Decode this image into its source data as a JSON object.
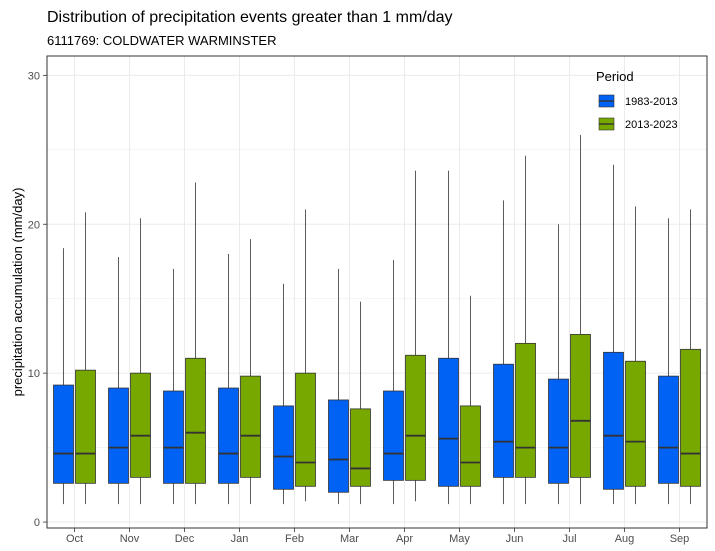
{
  "chart_data": {
    "type": "boxplot",
    "title": "Distribution of precipitation events greater than 1 mm/day",
    "subtitle": "6111769: COLDWATER WARMINSTER",
    "xlabel": "",
    "ylabel": "precipitation accumulation (mm/day)",
    "ylim": [
      0,
      30
    ],
    "yticks": [
      0,
      10,
      20,
      30
    ],
    "grid": true,
    "legend": {
      "title": "Period",
      "position": "top-right"
    },
    "categories": [
      "Oct",
      "Nov",
      "Dec",
      "Jan",
      "Feb",
      "Mar",
      "Apr",
      "May",
      "Jun",
      "Jul",
      "Aug",
      "Sep"
    ],
    "series": [
      {
        "name": "1983-2013",
        "color": "#0061F5",
        "boxes": [
          {
            "low": 1.2,
            "q1": 2.6,
            "median": 4.6,
            "q3": 9.2,
            "high": 18.4
          },
          {
            "low": 1.2,
            "q1": 2.6,
            "median": 5.0,
            "q3": 9.0,
            "high": 17.8
          },
          {
            "low": 1.2,
            "q1": 2.6,
            "median": 5.0,
            "q3": 8.8,
            "high": 17.0
          },
          {
            "low": 1.2,
            "q1": 2.6,
            "median": 4.6,
            "q3": 9.0,
            "high": 18.0
          },
          {
            "low": 1.2,
            "q1": 2.2,
            "median": 4.4,
            "q3": 7.8,
            "high": 16.0
          },
          {
            "low": 1.2,
            "q1": 2.0,
            "median": 4.2,
            "q3": 8.2,
            "high": 17.0
          },
          {
            "low": 1.2,
            "q1": 2.8,
            "median": 4.6,
            "q3": 8.8,
            "high": 17.6
          },
          {
            "low": 1.2,
            "q1": 2.4,
            "median": 5.6,
            "q3": 11.0,
            "high": 23.6
          },
          {
            "low": 1.2,
            "q1": 3.0,
            "median": 5.4,
            "q3": 10.6,
            "high": 21.6
          },
          {
            "low": 1.2,
            "q1": 2.6,
            "median": 5.0,
            "q3": 9.6,
            "high": 20.0
          },
          {
            "low": 1.2,
            "q1": 2.2,
            "median": 5.8,
            "q3": 11.4,
            "high": 24.0
          },
          {
            "low": 1.2,
            "q1": 2.6,
            "median": 5.0,
            "q3": 9.8,
            "high": 20.4
          }
        ]
      },
      {
        "name": "2013-2023",
        "color": "#77A800",
        "boxes": [
          {
            "low": 1.2,
            "q1": 2.6,
            "median": 4.6,
            "q3": 10.2,
            "high": 20.8
          },
          {
            "low": 1.2,
            "q1": 3.0,
            "median": 5.8,
            "q3": 10.0,
            "high": 20.4
          },
          {
            "low": 1.2,
            "q1": 2.6,
            "median": 6.0,
            "q3": 11.0,
            "high": 22.8
          },
          {
            "low": 1.2,
            "q1": 3.0,
            "median": 5.8,
            "q3": 9.8,
            "high": 19.0
          },
          {
            "low": 1.4,
            "q1": 2.4,
            "median": 4.0,
            "q3": 10.0,
            "high": 21.0
          },
          {
            "low": 1.2,
            "q1": 2.4,
            "median": 3.6,
            "q3": 7.6,
            "high": 14.8
          },
          {
            "low": 1.4,
            "q1": 2.8,
            "median": 5.8,
            "q3": 11.2,
            "high": 23.6
          },
          {
            "low": 1.2,
            "q1": 2.4,
            "median": 4.0,
            "q3": 7.8,
            "high": 15.2
          },
          {
            "low": 1.2,
            "q1": 3.0,
            "median": 5.0,
            "q3": 12.0,
            "high": 24.6
          },
          {
            "low": 1.2,
            "q1": 3.0,
            "median": 6.8,
            "q3": 12.6,
            "high": 26.0
          },
          {
            "low": 1.2,
            "q1": 2.4,
            "median": 5.4,
            "q3": 10.8,
            "high": 21.2
          },
          {
            "low": 1.2,
            "q1": 2.4,
            "median": 4.6,
            "q3": 11.6,
            "high": 21.0
          }
        ]
      }
    ]
  }
}
